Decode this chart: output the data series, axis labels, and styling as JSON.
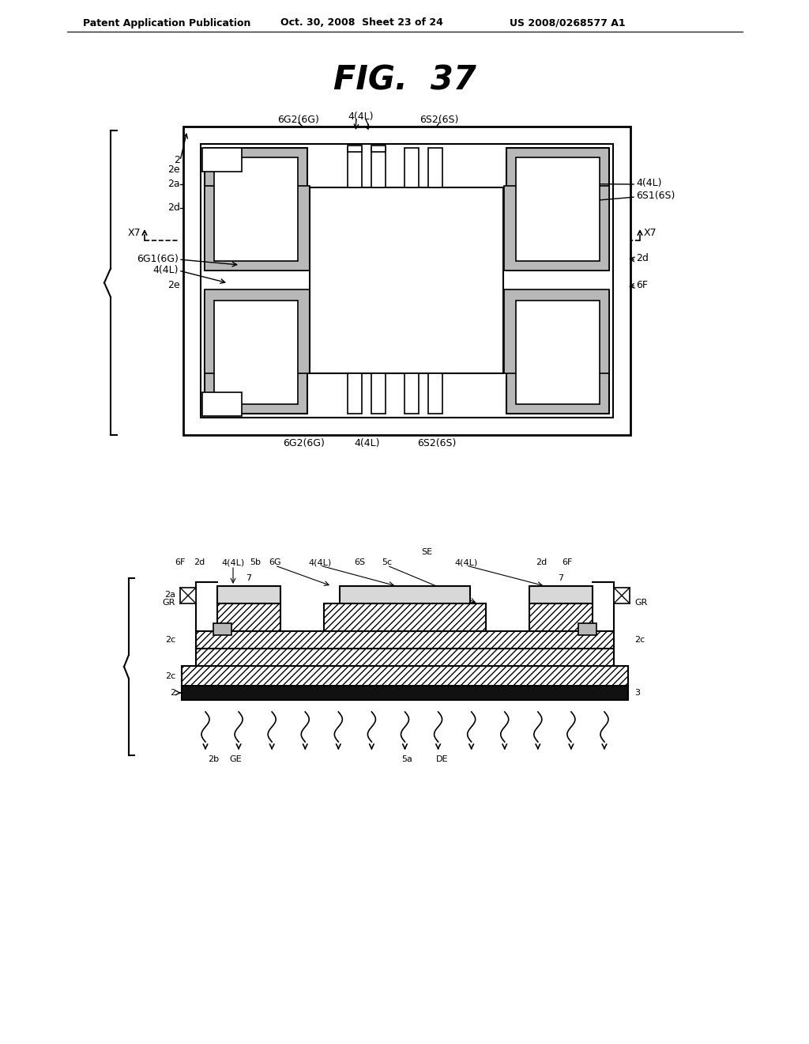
{
  "title": "FIG.  37",
  "header_left": "Patent Application Publication",
  "header_mid": "Oct. 30, 2008  Sheet 23 of 24",
  "header_right": "US 2008/0268577 A1",
  "bg_color": "#ffffff",
  "gray_fill": "#b8b8b8",
  "light_gray": "#d8d8d8"
}
